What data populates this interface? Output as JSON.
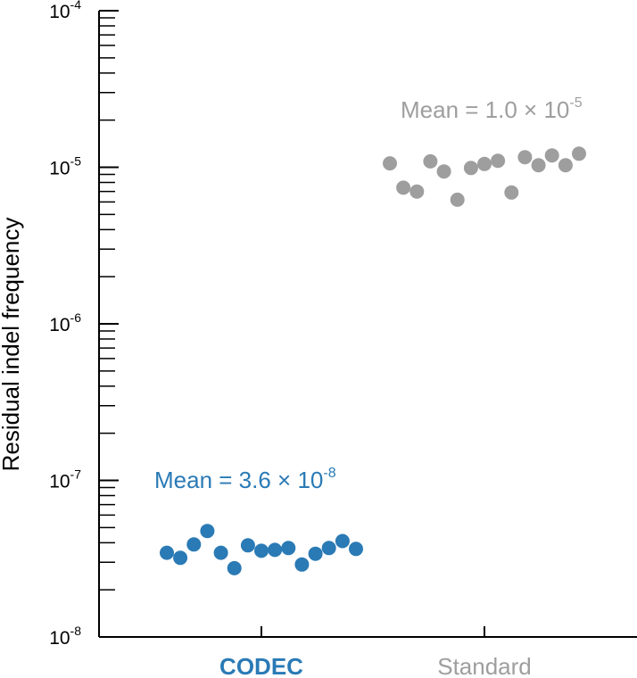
{
  "chart_data": {
    "type": "scatter",
    "title": "",
    "xlabel": "",
    "ylabel": "Residual indel frequency",
    "yscale": "log",
    "ylim": [
      1e-08,
      0.0001
    ],
    "grid": false,
    "y_ticks": [
      {
        "value": 1e-08,
        "base": "10",
        "exp": "-8"
      },
      {
        "value": 1e-07,
        "base": "10",
        "exp": "-7"
      },
      {
        "value": 1e-06,
        "base": "10",
        "exp": "-6"
      },
      {
        "value": 1e-05,
        "base": "10",
        "exp": "-5"
      },
      {
        "value": 0.0001,
        "base": "10",
        "exp": "-4"
      }
    ],
    "categories": [
      "CODEC",
      "Standard"
    ],
    "series": [
      {
        "name": "CODEC",
        "color": "#2a7ab5",
        "annotation": {
          "prefix": "Mean = 3.6 × 10",
          "exp": "-8"
        },
        "values": [
          3.45e-08,
          3.2e-08,
          3.9e-08,
          4.75e-08,
          3.45e-08,
          2.75e-08,
          3.85e-08,
          3.55e-08,
          3.6e-08,
          3.7e-08,
          2.9e-08,
          3.4e-08,
          3.7e-08,
          4.1e-08,
          3.65e-08
        ]
      },
      {
        "name": "Standard",
        "color": "#9e9e9e",
        "annotation": {
          "prefix": "Mean = 1.0 × 10",
          "exp": "-5"
        },
        "values": [
          1.06e-05,
          7.4e-06,
          7e-06,
          1.09e-05,
          9.4e-06,
          6.2e-06,
          9.9e-06,
          1.05e-05,
          1.1e-05,
          6.9e-06,
          1.16e-05,
          1.03e-05,
          1.19e-05,
          1.03e-05,
          1.22e-05
        ]
      }
    ]
  }
}
